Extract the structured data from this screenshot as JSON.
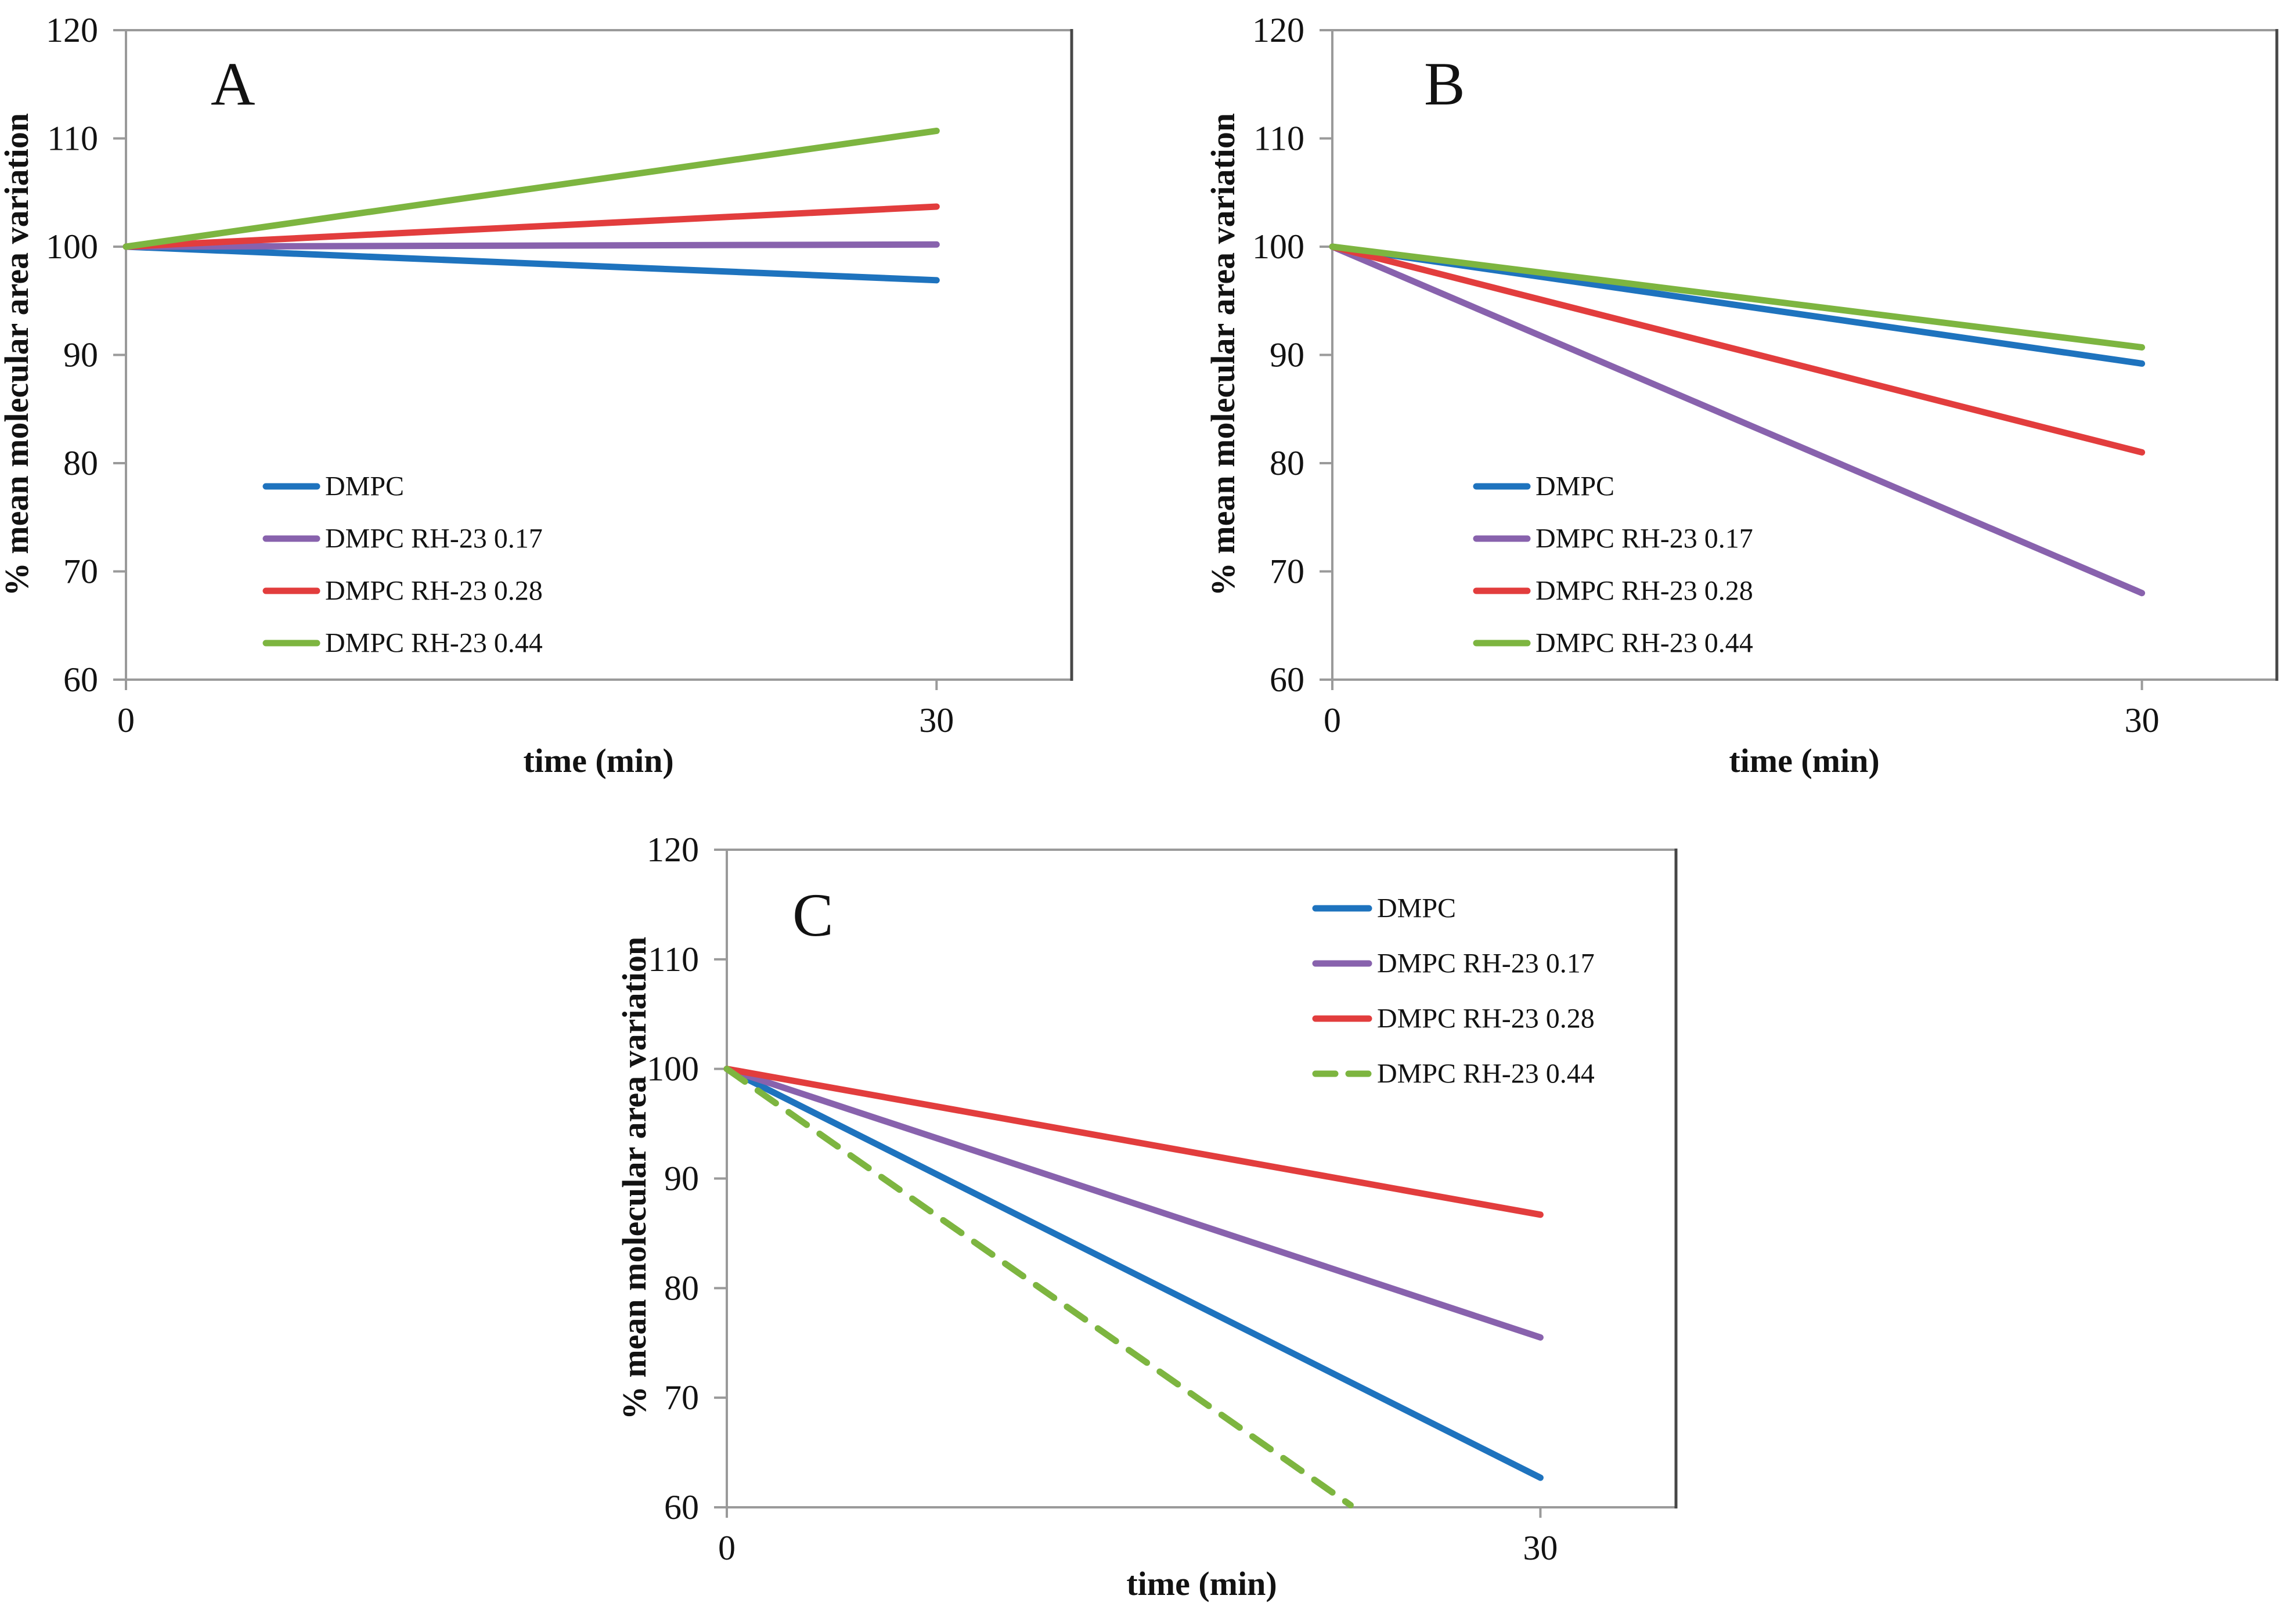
{
  "figure": {
    "description_note": "",
    "panels_count": "3"
  },
  "chart_data": [
    {
      "type": "line",
      "title": "A",
      "xlabel": "time (min)",
      "ylabel": "% mean molecular area variation",
      "xlim": [
        0,
        35
      ],
      "ylim": [
        60,
        120
      ],
      "x_ticks": [
        0,
        30
      ],
      "y_ticks": [
        120,
        110,
        100,
        90,
        80,
        70,
        60
      ],
      "grid": "off",
      "legend_position": "inside-center-left",
      "series": [
        {
          "name": "DMPC",
          "color": "#1e73be",
          "dash": "solid",
          "points": [
            [
              0,
              100
            ],
            [
              30,
              96.9
            ]
          ]
        },
        {
          "name": "DMPC RH-23 0.17",
          "color": "#8862ad",
          "dash": "solid",
          "points": [
            [
              0,
              100
            ],
            [
              30,
              100.2
            ]
          ]
        },
        {
          "name": "DMPC RH-23 0.28",
          "color": "#e23d3d",
          "dash": "solid",
          "points": [
            [
              0,
              100
            ],
            [
              30,
              103.7
            ]
          ]
        },
        {
          "name": "DMPC RH-23 0.44",
          "color": "#7db540",
          "dash": "solid",
          "points": [
            [
              0,
              100
            ],
            [
              30,
              110.7
            ]
          ]
        }
      ]
    },
    {
      "type": "line",
      "title": "B",
      "xlabel": "time (min)",
      "ylabel": "% mean molecular area variation",
      "xlim": [
        0,
        35
      ],
      "ylim": [
        60,
        120
      ],
      "x_ticks": [
        0,
        30
      ],
      "y_ticks": [
        120,
        110,
        100,
        90,
        80,
        70,
        60
      ],
      "grid": "off",
      "legend_position": "inside-center-left",
      "series": [
        {
          "name": "DMPC",
          "color": "#1e73be",
          "dash": "solid",
          "points": [
            [
              0,
              100
            ],
            [
              30,
              89.2
            ]
          ]
        },
        {
          "name": "DMPC RH-23 0.17",
          "color": "#8862ad",
          "dash": "solid",
          "points": [
            [
              0,
              100
            ],
            [
              30,
              68.0
            ]
          ]
        },
        {
          "name": "DMPC RH-23 0.28",
          "color": "#e23d3d",
          "dash": "solid",
          "points": [
            [
              0,
              100
            ],
            [
              30,
              81.0
            ]
          ]
        },
        {
          "name": "DMPC RH-23 0.44",
          "color": "#7db540",
          "dash": "solid",
          "points": [
            [
              0,
              100
            ],
            [
              30,
              90.7
            ]
          ]
        }
      ]
    },
    {
      "type": "line",
      "title": "C",
      "xlabel": "time (min)",
      "ylabel": "% mean molecular area variation",
      "xlim": [
        0,
        35
      ],
      "ylim": [
        60,
        120
      ],
      "x_ticks": [
        0,
        30
      ],
      "y_ticks": [
        120,
        110,
        100,
        90,
        80,
        70,
        60
      ],
      "grid": "off",
      "legend_position": "inside-top-right",
      "series": [
        {
          "name": "DMPC",
          "color": "#1e73be",
          "dash": "solid",
          "points": [
            [
              0,
              100
            ],
            [
              30,
              62.7
            ]
          ]
        },
        {
          "name": "DMPC RH-23 0.17",
          "color": "#8862ad",
          "dash": "solid",
          "points": [
            [
              0,
              100
            ],
            [
              30,
              75.5
            ]
          ]
        },
        {
          "name": "DMPC RH-23 0.28",
          "color": "#e23d3d",
          "dash": "solid",
          "points": [
            [
              0,
              100
            ],
            [
              30,
              86.7
            ]
          ]
        },
        {
          "name": "DMPC RH-23 0.44",
          "color": "#7db540",
          "dash": "dashed",
          "points": [
            [
              0,
              100
            ],
            [
              23,
              60.2
            ]
          ],
          "note": "clipped at lower axis before 30 min"
        }
      ]
    }
  ],
  "colors": {
    "axis_gray": "#9a9a9a",
    "frame_dark_edge": "#474747",
    "text": "#121212",
    "background": "#ffffff"
  }
}
